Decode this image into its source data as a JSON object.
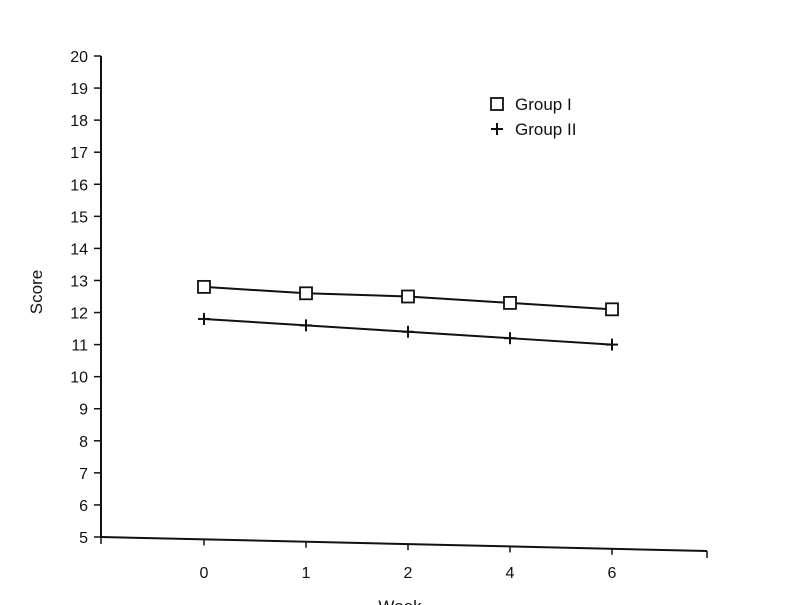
{
  "chart_data": {
    "type": "line",
    "title": "",
    "xlabel": "Week",
    "ylabel": "Score",
    "categories": [
      "0",
      "1",
      "2",
      "4",
      "6"
    ],
    "ylim": [
      5,
      20
    ],
    "y_ticks": [
      5,
      6,
      7,
      8,
      9,
      10,
      11,
      12,
      13,
      14,
      15,
      16,
      17,
      18,
      19,
      20
    ],
    "grid": false,
    "legend_position": "top-right",
    "series": [
      {
        "name": "Group I",
        "marker": "square",
        "values": [
          12.8,
          12.6,
          12.5,
          12.3,
          12.1
        ]
      },
      {
        "name": "Group II",
        "marker": "plus",
        "values": [
          11.8,
          11.6,
          11.4,
          11.2,
          11.0
        ]
      }
    ],
    "colors": {
      "ink": "#111111",
      "background": "#ffffff"
    }
  }
}
